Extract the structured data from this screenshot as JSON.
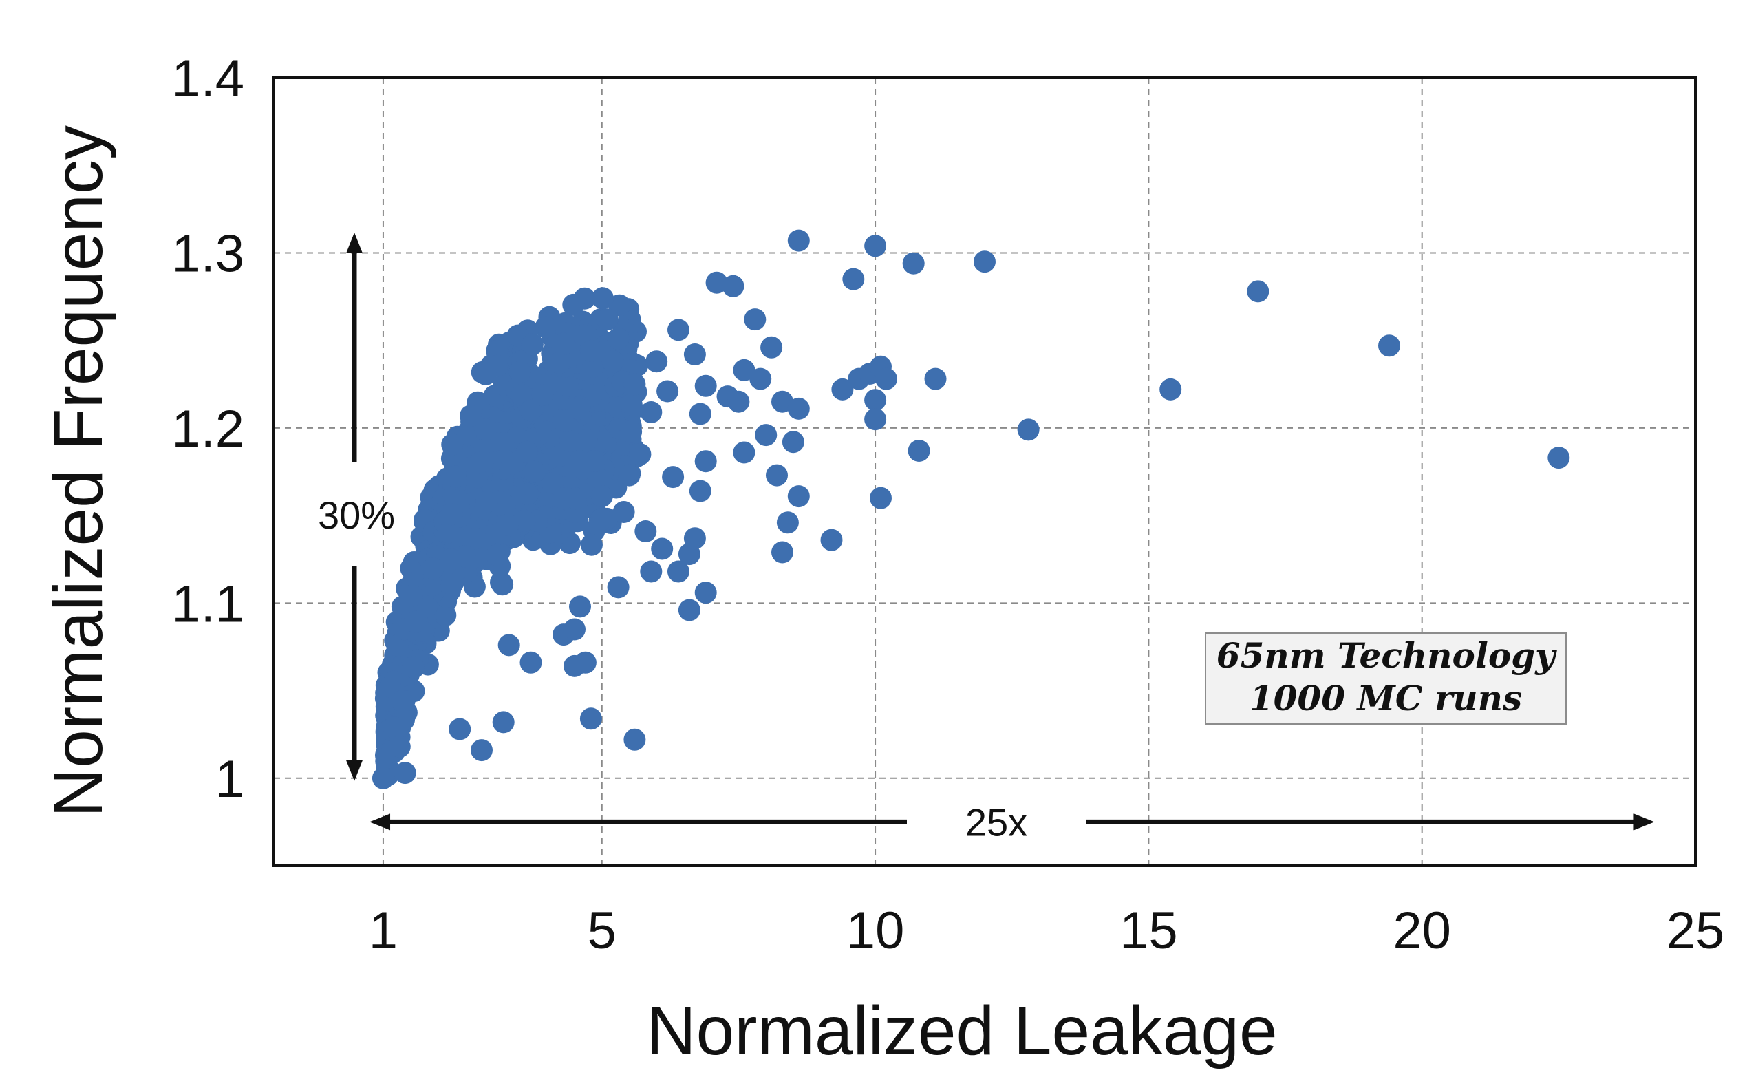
{
  "colors": {
    "point": "#3e6faf",
    "grid": "#8a8a8a",
    "axis": "#111111",
    "arrow": "#111111",
    "box_fill": "#f2f2f2",
    "box_stroke": "#8c8c8c"
  },
  "chart_data": {
    "type": "scatter",
    "title": "",
    "xlabel": "Normalized Leakage",
    "ylabel": "Normalized Frequency",
    "xlim": [
      -1,
      25
    ],
    "ylim": [
      0.95,
      1.4
    ],
    "xticks": [
      1,
      5,
      10,
      15,
      20,
      25
    ],
    "xtick_labels": [
      "1",
      "5",
      "10",
      "15",
      "20",
      "25"
    ],
    "yticks": [
      1.0,
      1.1,
      1.2,
      1.3,
      1.4
    ],
    "ytick_labels": [
      "1",
      "1.1",
      "1.2",
      "1.3",
      "1.4"
    ],
    "grid": true,
    "grid_style": "dashed",
    "marker": "circle",
    "annotations": [
      {
        "text": "30%",
        "type": "vertical-arrow",
        "from_y": 1.0,
        "to_y": 1.31,
        "at_x": 0.5
      },
      {
        "text": "25x",
        "type": "horizontal-arrow",
        "from_x": 0.8,
        "to_x": 24.2,
        "at_y": 0.975
      }
    ],
    "textbox": [
      "65nm Technology",
      "1000 MC runs"
    ],
    "series": [
      {
        "values": [
          [
            1.0,
            1.0
          ],
          [
            1.4,
            1.003
          ],
          [
            1.2,
            1.015
          ],
          [
            1.3,
            1.018
          ],
          [
            2.8,
            1.016
          ],
          [
            3.2,
            1.032
          ],
          [
            4.8,
            1.034
          ],
          [
            5.6,
            1.022
          ],
          [
            2.6,
            1.207
          ],
          [
            3.5,
            1.232
          ],
          [
            4.3,
            1.248
          ],
          [
            4.8,
            1.244
          ],
          [
            5.1,
            1.262
          ],
          [
            5.3,
            1.251
          ],
          [
            6.4,
            1.256
          ],
          [
            6.7,
            1.242
          ],
          [
            7.1,
            1.283
          ],
          [
            7.4,
            1.281
          ],
          [
            7.8,
            1.262
          ],
          [
            7.6,
            1.233
          ],
          [
            7.9,
            1.228
          ],
          [
            8.1,
            1.246
          ],
          [
            7.3,
            1.218
          ],
          [
            7.6,
            1.186
          ],
          [
            7.5,
            1.215
          ],
          [
            8.0,
            1.196
          ],
          [
            8.3,
            1.215
          ],
          [
            8.5,
            1.192
          ],
          [
            8.6,
            1.211
          ],
          [
            8.2,
            1.173
          ],
          [
            8.4,
            1.146
          ],
          [
            8.6,
            1.161
          ],
          [
            8.3,
            1.129
          ],
          [
            9.2,
            1.136
          ],
          [
            6.6,
            1.096
          ],
          [
            6.9,
            1.106
          ],
          [
            5.3,
            1.109
          ],
          [
            5.9,
            1.118
          ],
          [
            6.6,
            1.128
          ],
          [
            8.6,
            1.307
          ],
          [
            10.0,
            1.304
          ],
          [
            9.6,
            1.285
          ],
          [
            10.7,
            1.294
          ],
          [
            12.0,
            1.295
          ],
          [
            9.4,
            1.222
          ],
          [
            9.7,
            1.228
          ],
          [
            9.9,
            1.231
          ],
          [
            10.1,
            1.235
          ],
          [
            10.2,
            1.228
          ],
          [
            10.0,
            1.216
          ],
          [
            10.0,
            1.205
          ],
          [
            10.8,
            1.187
          ],
          [
            10.1,
            1.16
          ],
          [
            11.1,
            1.228
          ],
          [
            12.8,
            1.199
          ],
          [
            15.4,
            1.222
          ],
          [
            17.0,
            1.278
          ],
          [
            19.4,
            1.247
          ],
          [
            22.5,
            1.183
          ],
          [
            4.5,
            1.064
          ],
          [
            4.7,
            1.066
          ],
          [
            4.3,
            1.082
          ],
          [
            4.5,
            1.085
          ],
          [
            3.7,
            1.066
          ],
          [
            3.3,
            1.076
          ],
          [
            4.6,
            1.098
          ],
          [
            2.4,
            1.028
          ],
          [
            5.0,
            1.161
          ],
          [
            5.4,
            1.152
          ],
          [
            5.8,
            1.141
          ],
          [
            6.1,
            1.131
          ],
          [
            6.4,
            1.118
          ],
          [
            6.7,
            1.137
          ],
          [
            6.3,
            1.172
          ],
          [
            6.8,
            1.164
          ],
          [
            6.9,
            1.181
          ],
          [
            6.8,
            1.208
          ],
          [
            6.2,
            1.221
          ],
          [
            6.0,
            1.238
          ],
          [
            6.9,
            1.224
          ],
          [
            5.9,
            1.209
          ],
          [
            5.7,
            1.185
          ],
          [
            5.5,
            1.173
          ],
          [
            5.2,
            1.238
          ],
          [
            5.6,
            1.225
          ]
        ]
      }
    ]
  }
}
